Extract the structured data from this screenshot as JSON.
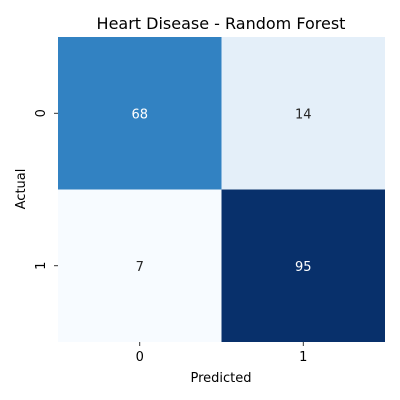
{
  "chart_data": {
    "type": "heatmap",
    "title": "Heart Disease - Random Forest",
    "xlabel": "Predicted",
    "ylabel": "Actual",
    "x_categories": [
      "0",
      "1"
    ],
    "y_categories": [
      "0",
      "1"
    ],
    "values": [
      [
        68,
        14
      ],
      [
        7,
        95
      ]
    ],
    "colormap": "Blues",
    "colorbar": false,
    "colors": [
      [
        "#3282c2",
        "#e4eff9"
      ],
      [
        "#f7fbff",
        "#08306b"
      ]
    ],
    "text_colors": [
      [
        "#ffffff",
        "#262626"
      ],
      [
        "#262626",
        "#ffffff"
      ]
    ]
  }
}
